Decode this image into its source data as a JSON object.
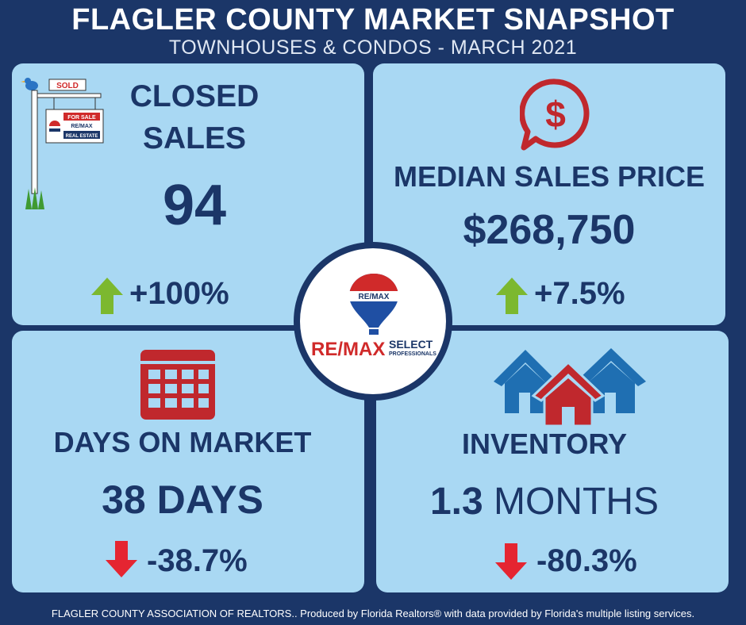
{
  "header": {
    "title": "FLAGLER COUNTY MARKET SNAPSHOT",
    "subtitle": "TOWNHOUSES & CONDOS - MARCH 2021"
  },
  "closed_sales": {
    "label_line1": "CLOSED",
    "label_line2": "SALES",
    "value": "94",
    "change": "+100%",
    "direction": "up",
    "sign_sold": "SOLD",
    "sign_for_sale": "FOR SALE",
    "sign_brand": "RE/MAX",
    "sign_real_estate": "REAL ESTATE"
  },
  "median_price": {
    "label": "MEDIAN SALES PRICE",
    "value": "$268,750",
    "change": "+7.5%",
    "direction": "up"
  },
  "days_on_market": {
    "label": "DAYS ON MARKET",
    "value": "38 DAYS",
    "change": "-38.7%",
    "direction": "down"
  },
  "inventory": {
    "label": "INVENTORY",
    "value_number": "1.3",
    "value_unit": "MONTHS",
    "change": "-80.3%",
    "direction": "down"
  },
  "logo": {
    "balloon_text": "RE/MAX",
    "brand": "RE/MAX",
    "select": "SELECT",
    "professionals": "PROFESSIONALS"
  },
  "footer": {
    "text": "FLAGLER COUNTY ASSOCIATION OF REALTORS.. Produced by Florida Realtors® with data provided by Florida's multiple listing services."
  },
  "colors": {
    "background": "#1b3668",
    "panel": "#a9d8f3",
    "text": "#1b3668",
    "up_arrow": "#7cb82f",
    "down_arrow": "#e52531",
    "icon_red": "#c0282d",
    "icon_blue": "#1f6fb2"
  }
}
